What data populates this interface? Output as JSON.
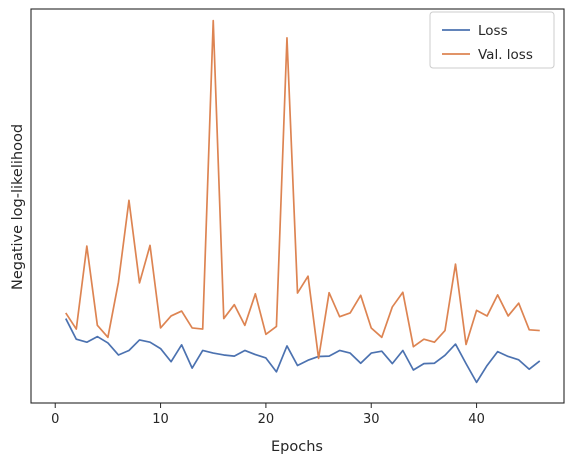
{
  "chart_data": {
    "type": "line",
    "xlabel": "Epochs",
    "ylabel": "Negative log-likelihood",
    "xlim": [
      -2.3,
      48.3
    ],
    "ylim": [
      -0.2,
      10.3
    ],
    "xticks": [
      0,
      10,
      20,
      30,
      40
    ],
    "xtick_labels": [
      "0",
      "10",
      "20",
      "30",
      "40"
    ],
    "y_tick_labels_shown": false,
    "grid": false,
    "legend_position": "top-right",
    "x": [
      1,
      2,
      3,
      4,
      5,
      6,
      7,
      8,
      9,
      10,
      11,
      12,
      13,
      14,
      15,
      16,
      17,
      18,
      19,
      20,
      21,
      22,
      23,
      24,
      25,
      26,
      27,
      28,
      29,
      30,
      31,
      32,
      33,
      34,
      35,
      36,
      37,
      38,
      39,
      40,
      41,
      42,
      43,
      44,
      45,
      46
    ],
    "series": [
      {
        "name": "Loss",
        "color": "#4c72b0",
        "values": [
          2.05,
          1.5,
          1.42,
          1.57,
          1.4,
          1.08,
          1.2,
          1.48,
          1.42,
          1.25,
          0.9,
          1.35,
          0.73,
          1.2,
          1.13,
          1.08,
          1.05,
          1.2,
          1.09,
          1.0,
          0.63,
          1.32,
          0.8,
          0.94,
          1.04,
          1.05,
          1.2,
          1.13,
          0.86,
          1.13,
          1.18,
          0.85,
          1.2,
          0.68,
          0.85,
          0.86,
          1.07,
          1.37,
          0.85,
          0.35,
          0.8,
          1.17,
          1.04,
          0.95,
          0.7,
          0.92
        ]
      },
      {
        "name": "Val. loss",
        "color": "#dd8452",
        "values": [
          2.2,
          1.77,
          3.98,
          1.87,
          1.55,
          3.02,
          5.2,
          3.0,
          4.0,
          1.8,
          2.12,
          2.25,
          1.8,
          1.77,
          9.99,
          2.05,
          2.42,
          1.87,
          2.71,
          1.63,
          1.84,
          9.53,
          2.73,
          3.18,
          0.99,
          2.74,
          2.1,
          2.2,
          2.67,
          1.8,
          1.55,
          2.36,
          2.75,
          1.3,
          1.5,
          1.42,
          1.73,
          3.5,
          1.36,
          2.27,
          2.12,
          2.68,
          2.12,
          2.46,
          1.75,
          1.73
        ]
      }
    ]
  }
}
